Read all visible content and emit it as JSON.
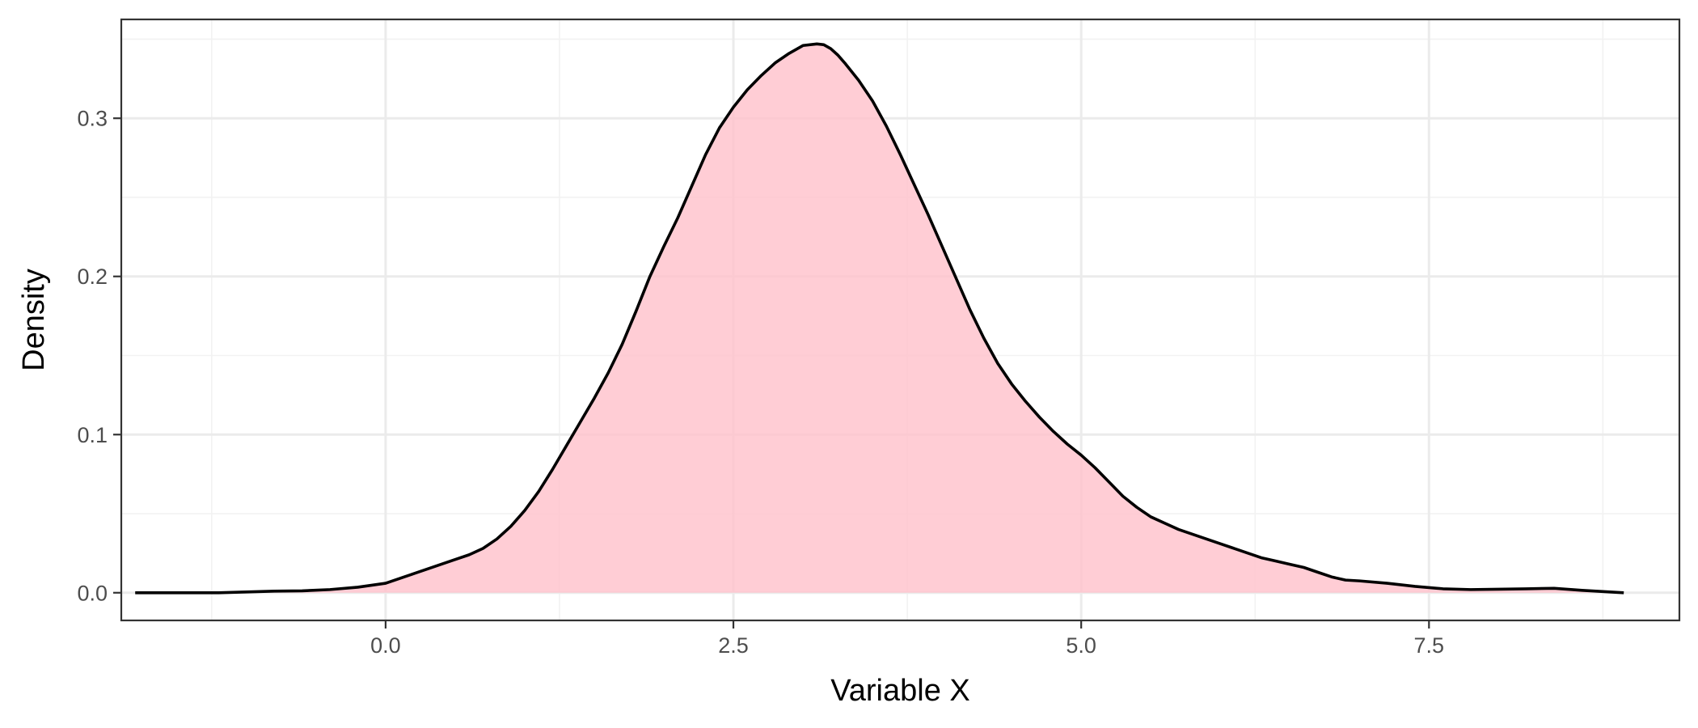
{
  "chart_data": {
    "type": "area",
    "title": "",
    "xlabel": "Variable X",
    "ylabel": "Density",
    "xlim": [
      -1.9,
      9.3
    ],
    "ylim": [
      -0.0175,
      0.3625
    ],
    "x_ticks": [
      0.0,
      2.5,
      5.0,
      7.5
    ],
    "x_tick_labels": [
      "0.0",
      "2.5",
      "5.0",
      "7.5"
    ],
    "y_ticks": [
      0.0,
      0.1,
      0.2,
      0.3
    ],
    "y_tick_labels": [
      "0.0",
      "0.1",
      "0.2",
      "0.3"
    ],
    "x_minor_ticks": [
      -1.25,
      1.25,
      3.75,
      6.25,
      8.75
    ],
    "y_minor_ticks": [
      0.05,
      0.15,
      0.25,
      0.35
    ],
    "grid": true,
    "legend": "none",
    "fill_color": "#ffc0cb",
    "line_color": "#000000",
    "series": [
      {
        "x": [
          -1.8,
          -1.4,
          -1.2,
          -1.0,
          -0.8,
          -0.6,
          -0.4,
          -0.2,
          0.0,
          0.1,
          0.2,
          0.3,
          0.4,
          0.5,
          0.6,
          0.7,
          0.8,
          0.9,
          1.0,
          1.1,
          1.2,
          1.3,
          1.4,
          1.5,
          1.6,
          1.7,
          1.8,
          1.9,
          2.0,
          2.1,
          2.2,
          2.3,
          2.4,
          2.5,
          2.6,
          2.7,
          2.8,
          2.9,
          3.0,
          3.1,
          3.15,
          3.2,
          3.25,
          3.3,
          3.4,
          3.5,
          3.6,
          3.7,
          3.8,
          3.9,
          4.0,
          4.1,
          4.2,
          4.3,
          4.4,
          4.5,
          4.6,
          4.7,
          4.8,
          4.9,
          5.0,
          5.1,
          5.2,
          5.3,
          5.4,
          5.5,
          5.6,
          5.7,
          5.8,
          5.9,
          6.0,
          6.1,
          6.2,
          6.3,
          6.4,
          6.5,
          6.6,
          6.7,
          6.8,
          6.9,
          7.0,
          7.2,
          7.4,
          7.6,
          7.8,
          8.0,
          8.2,
          8.4,
          8.6,
          8.8,
          8.9
        ],
        "y": [
          0.0,
          0.0,
          0.0,
          0.0005,
          0.001,
          0.0012,
          0.002,
          0.0035,
          0.006,
          0.009,
          0.012,
          0.015,
          0.018,
          0.021,
          0.024,
          0.028,
          0.034,
          0.042,
          0.052,
          0.064,
          0.078,
          0.093,
          0.108,
          0.123,
          0.139,
          0.157,
          0.178,
          0.2,
          0.219,
          0.237,
          0.257,
          0.277,
          0.294,
          0.307,
          0.318,
          0.327,
          0.335,
          0.341,
          0.346,
          0.347,
          0.3465,
          0.344,
          0.34,
          0.335,
          0.324,
          0.311,
          0.295,
          0.277,
          0.258,
          0.239,
          0.219,
          0.199,
          0.179,
          0.161,
          0.145,
          0.132,
          0.121,
          0.111,
          0.102,
          0.094,
          0.087,
          0.079,
          0.07,
          0.061,
          0.054,
          0.048,
          0.044,
          0.04,
          0.037,
          0.034,
          0.031,
          0.028,
          0.025,
          0.022,
          0.02,
          0.018,
          0.016,
          0.013,
          0.01,
          0.008,
          0.0075,
          0.006,
          0.004,
          0.0025,
          0.002,
          0.0022,
          0.0025,
          0.0028,
          0.0015,
          0.0005,
          0.0
        ]
      }
    ]
  }
}
